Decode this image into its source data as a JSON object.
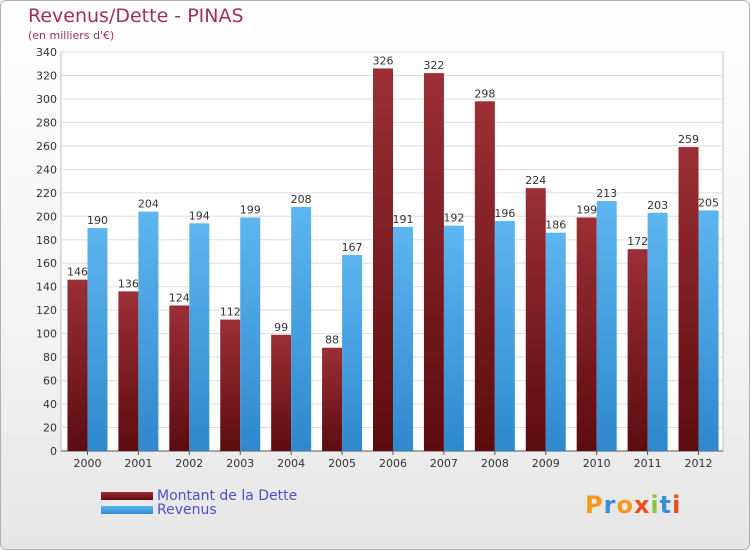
{
  "header": {
    "title": "Revenus/Dette - PINAS",
    "subtitle": "(en milliers d'€)"
  },
  "legend": [
    {
      "label": "Montant de la Dette",
      "color": "#6b1317"
    },
    {
      "label": "Revenus",
      "color": "#4aa6e6"
    }
  ],
  "brand": {
    "letters": [
      "P",
      "r",
      "o",
      "x",
      "i",
      "t",
      "i"
    ],
    "colors": [
      "#f39a1e",
      "#3a8fd8",
      "#f39a1e",
      "#e94e1b",
      "#8bc53f",
      "#3a8fd8",
      "#e94e1b"
    ]
  },
  "chart_data": {
    "type": "bar",
    "title": "Revenus/Dette - PINAS",
    "subtitle": "(en milliers d'€)",
    "xlabel": "",
    "ylabel": "",
    "categories": [
      "2000",
      "2001",
      "2002",
      "2003",
      "2004",
      "2005",
      "2006",
      "2007",
      "2008",
      "2009",
      "2010",
      "2011",
      "2012"
    ],
    "series": [
      {
        "name": "Montant de la Dette",
        "color": "#6b1317",
        "values": [
          146,
          136,
          124,
          112,
          99,
          88,
          326,
          322,
          298,
          224,
          199,
          172,
          259
        ]
      },
      {
        "name": "Revenus",
        "color": "#4aa6e6",
        "values": [
          190,
          204,
          194,
          199,
          208,
          167,
          191,
          192,
          196,
          186,
          213,
          203,
          205
        ]
      }
    ],
    "ylim": [
      0,
      340
    ],
    "ytick_step": 20,
    "grid": true,
    "legend_position": "bottom-left"
  }
}
